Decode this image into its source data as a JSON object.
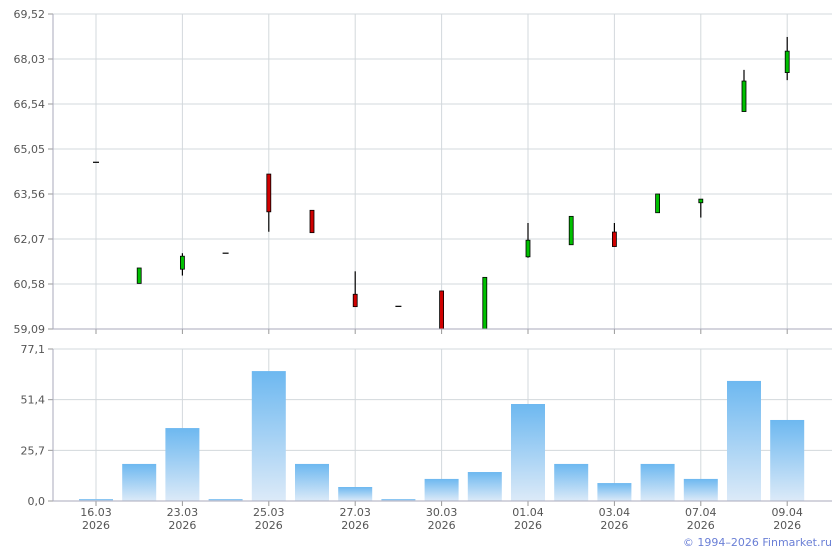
{
  "chart_data": [
    {
      "type": "candlestick",
      "categories": [
        "16.03 2026",
        "",
        "23.03 2026",
        "",
        "25.03 2026",
        "",
        "27.03 2026",
        "",
        "30.03 2026",
        "",
        "01.04 2026",
        "",
        "03.04 2026",
        "",
        "07.04 2026",
        "",
        "09.04 2026"
      ],
      "ohlc": [
        [
          64.61,
          64.61,
          64.61,
          64.61
        ],
        [
          60.6,
          61.11,
          60.6,
          61.11
        ],
        [
          61.07,
          61.6,
          60.86,
          61.5
        ],
        [
          61.6,
          61.6,
          61.6,
          61.6
        ],
        [
          64.22,
          64.22,
          62.31,
          62.97
        ],
        [
          63.02,
          63.02,
          62.28,
          62.28
        ],
        [
          60.24,
          61.0,
          59.83,
          59.83
        ],
        [
          59.84,
          59.84,
          59.84,
          59.84
        ],
        [
          60.35,
          60.35,
          59.09,
          59.09
        ],
        [
          59.09,
          60.8,
          59.09,
          60.8
        ],
        [
          61.48,
          62.6,
          61.45,
          62.03
        ],
        [
          61.88,
          62.82,
          61.88,
          62.82
        ],
        [
          62.3,
          62.6,
          61.82,
          61.82
        ],
        [
          62.94,
          63.56,
          62.94,
          63.56
        ],
        [
          63.27,
          63.39,
          62.78,
          63.39
        ],
        [
          66.29,
          67.67,
          66.29,
          67.3
        ],
        [
          67.58,
          68.76,
          67.33,
          68.29
        ]
      ],
      "ylim": [
        59.09,
        69.52
      ],
      "yticks": [
        "69,52",
        "68,03",
        "66,54",
        "65,05",
        "63,56",
        "62,07",
        "60,58",
        "59,09"
      ],
      "grid": true,
      "colors": {
        "up": "#00c000",
        "down": "#d00000",
        "wick": "#000000"
      }
    },
    {
      "type": "bar",
      "values": [
        1,
        18.8,
        37,
        1,
        65.9,
        18.8,
        7.1,
        1,
        11.2,
        14.7,
        49.2,
        18.8,
        9.1,
        18.8,
        11.2,
        60.9,
        41.1
      ],
      "ylim": [
        0,
        77.1
      ],
      "yticks": [
        "77,1",
        "51,4",
        "25,7",
        "0,0"
      ],
      "xticks": [
        {
          "index": 0,
          "day": "16.03",
          "year": "2026"
        },
        {
          "index": 2,
          "day": "23.03",
          "year": "2026"
        },
        {
          "index": 4,
          "day": "25.03",
          "year": "2026"
        },
        {
          "index": 6,
          "day": "27.03",
          "year": "2026"
        },
        {
          "index": 8,
          "day": "30.03",
          "year": "2026"
        },
        {
          "index": 10,
          "day": "01.04",
          "year": "2026"
        },
        {
          "index": 12,
          "day": "03.04",
          "year": "2026"
        },
        {
          "index": 14,
          "day": "07.04",
          "year": "2026"
        },
        {
          "index": 16,
          "day": "09.04",
          "year": "2026"
        }
      ],
      "grid": true,
      "colors": {
        "bar_top": "#6db8f0",
        "bar_bottom": "#dceaf8"
      }
    }
  ],
  "credit": "© 1994–2026 Finmarket.ru"
}
